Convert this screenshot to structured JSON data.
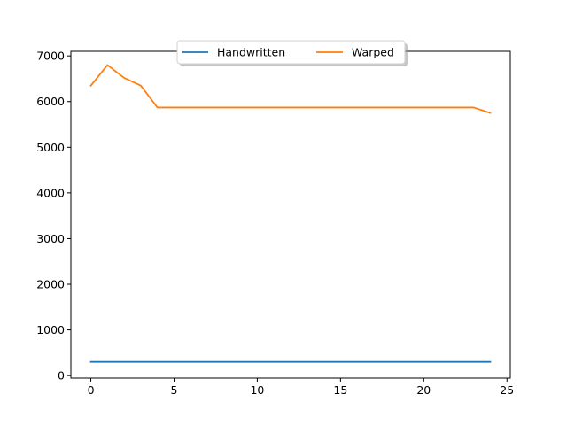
{
  "chart_data": {
    "type": "line",
    "title": "",
    "xlabel": "",
    "ylabel": "",
    "xlim": [
      -1.2,
      25.2
    ],
    "ylim": [
      -55,
      7100
    ],
    "x_ticks": [
      0,
      5,
      10,
      15,
      20,
      25
    ],
    "y_ticks": [
      0,
      1000,
      2000,
      3000,
      4000,
      5000,
      6000,
      7000
    ],
    "grid": false,
    "legend": {
      "placement": "top-center",
      "columns": 2,
      "shadow": true
    },
    "series": [
      {
        "name": "Handwritten",
        "color": "#1f77b4",
        "x": [
          0,
          1,
          2,
          3,
          4,
          5,
          6,
          7,
          8,
          9,
          10,
          11,
          12,
          13,
          14,
          15,
          16,
          17,
          18,
          19,
          20,
          21,
          22,
          23,
          24
        ],
        "values": [
          300,
          300,
          300,
          300,
          300,
          300,
          300,
          300,
          300,
          300,
          300,
          300,
          300,
          300,
          300,
          300,
          300,
          300,
          300,
          300,
          300,
          300,
          300,
          300,
          300
        ]
      },
      {
        "name": "Warped",
        "color": "#ff7f0e",
        "x": [
          0,
          1,
          2,
          3,
          4,
          5,
          6,
          7,
          8,
          9,
          10,
          11,
          12,
          13,
          14,
          15,
          16,
          17,
          18,
          19,
          20,
          21,
          22,
          23,
          24
        ],
        "values": [
          6350,
          6800,
          6520,
          6350,
          5870,
          5870,
          5870,
          5870,
          5870,
          5870,
          5870,
          5870,
          5870,
          5870,
          5870,
          5870,
          5870,
          5870,
          5870,
          5870,
          5870,
          5870,
          5870,
          5870,
          5750
        ]
      }
    ]
  }
}
